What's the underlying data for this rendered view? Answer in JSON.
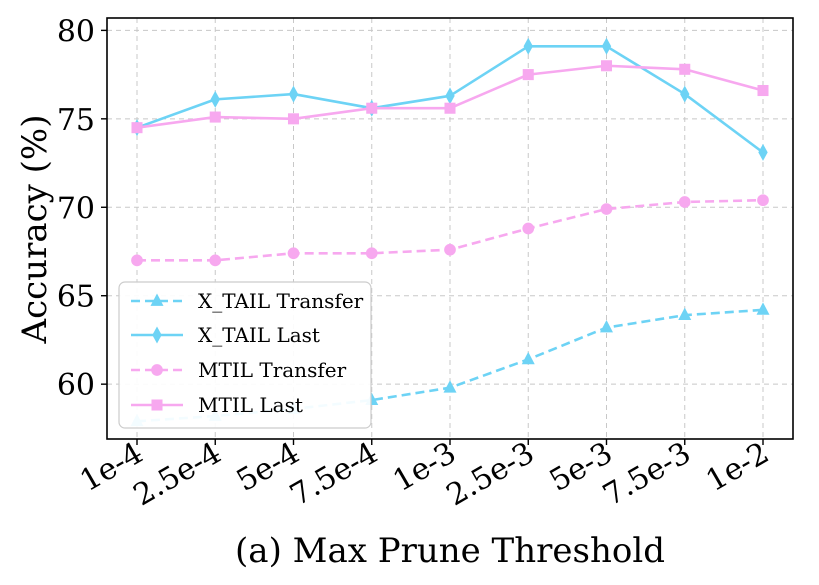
{
  "chart_data": {
    "type": "line",
    "title": "",
    "xlabel": "(a) Max Prune Threshold",
    "ylabel": "Accuracy (%)",
    "categories": [
      "1e-4",
      "2.5e-4",
      "5e-4",
      "7.5e-4",
      "1e-3",
      "2.5e-3",
      "5e-3",
      "7.5e-3",
      "1e-2"
    ],
    "ylim": [
      56.9,
      80.7
    ],
    "yticks": [
      60,
      65,
      70,
      75,
      80
    ],
    "grid": true,
    "legend_position": "bottom-left",
    "series": [
      {
        "name": "X_TAIL Transfer",
        "color": "#6dd3f5",
        "linestyle": "dashed",
        "marker": "triangle",
        "values": [
          57.9,
          58.2,
          58.6,
          59.1,
          59.8,
          61.4,
          63.2,
          63.9,
          64.2
        ]
      },
      {
        "name": "X_TAIL Last",
        "color": "#6dd3f5",
        "linestyle": "solid",
        "marker": "diamond",
        "values": [
          74.5,
          76.1,
          76.4,
          75.6,
          76.3,
          79.1,
          79.1,
          76.4,
          73.1
        ]
      },
      {
        "name": "MTIL Transfer",
        "color": "#f7a8ef",
        "linestyle": "dashed",
        "marker": "circle",
        "values": [
          67.0,
          67.0,
          67.4,
          67.4,
          67.6,
          68.8,
          69.9,
          70.3,
          70.4
        ]
      },
      {
        "name": "MTIL Last",
        "color": "#f7a8ef",
        "linestyle": "solid",
        "marker": "square",
        "values": [
          74.5,
          75.1,
          75.0,
          75.6,
          75.6,
          77.5,
          78.0,
          77.8,
          76.6
        ]
      }
    ]
  }
}
